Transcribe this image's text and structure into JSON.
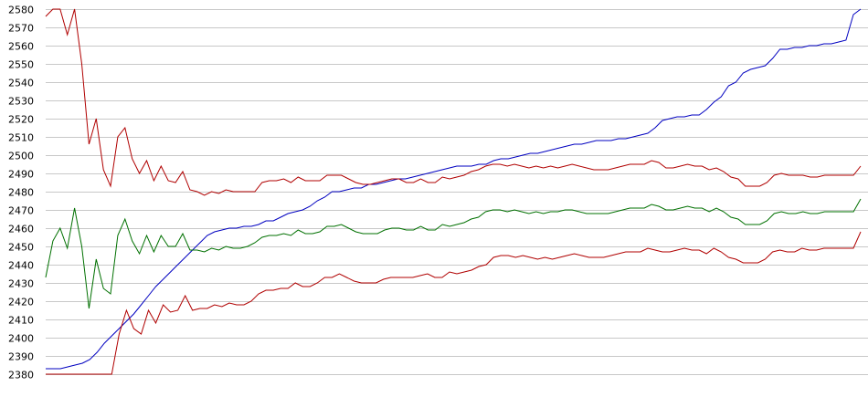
{
  "chart_data": {
    "type": "line",
    "title": "",
    "xlabel": "",
    "ylabel": "",
    "ylim": [
      2380,
      2580
    ],
    "y_ticks": [
      "2380",
      "2390",
      "2400",
      "2410",
      "2420",
      "2430",
      "2440",
      "2450",
      "2460",
      "2470",
      "2480",
      "2490",
      "2500",
      "2510",
      "2520",
      "2530",
      "2540",
      "2550",
      "2560",
      "2570",
      "2580"
    ],
    "grid": "horizontal",
    "legend": "none",
    "series": [
      {
        "color": "#0000c0",
        "values": [
          2383,
          2383,
          2383,
          2384,
          2385,
          2386,
          2388,
          2392,
          2397,
          2401,
          2405,
          2409,
          2413,
          2418,
          2423,
          2428,
          2432,
          2436,
          2440,
          2444,
          2448,
          2452,
          2456,
          2458,
          2459,
          2460,
          2460,
          2461,
          2461,
          2462,
          2464,
          2464,
          2466,
          2468,
          2469,
          2470,
          2472,
          2475,
          2477,
          2480,
          2480,
          2481,
          2482,
          2482,
          2484,
          2484,
          2485,
          2486,
          2487,
          2487,
          2488,
          2489,
          2490,
          2491,
          2492,
          2493,
          2494,
          2494,
          2494,
          2495,
          2495,
          2497,
          2498,
          2498,
          2499,
          2500,
          2501,
          2501,
          2502,
          2503,
          2504,
          2505,
          2506,
          2506,
          2507,
          2508,
          2508,
          2508,
          2509,
          2509,
          2510,
          2511,
          2512,
          2515,
          2519,
          2520,
          2521,
          2521,
          2522,
          2522,
          2525,
          2529,
          2532,
          2538,
          2540,
          2545,
          2547,
          2548,
          2549,
          2553,
          2558,
          2558,
          2559,
          2559,
          2560,
          2560,
          2561,
          2561,
          2562,
          2563,
          2577,
          2580
        ]
      },
      {
        "color": "#b00000",
        "values": [
          2576,
          2580,
          2580,
          2566,
          2580,
          2550,
          2506,
          2520,
          2492,
          2483,
          2510,
          2515,
          2498,
          2490,
          2497,
          2486,
          2494,
          2486,
          2485,
          2491,
          2481,
          2480,
          2478,
          2480,
          2479,
          2481,
          2480,
          2480,
          2480,
          2480,
          2485,
          2486,
          2486,
          2487,
          2485,
          2488,
          2486,
          2486,
          2486,
          2489,
          2489,
          2489,
          2487,
          2485,
          2484,
          2484,
          2485,
          2486,
          2487,
          2487,
          2485,
          2485,
          2487,
          2485,
          2485,
          2488,
          2487,
          2488,
          2489,
          2491,
          2492,
          2494,
          2495,
          2495,
          2494,
          2495,
          2494,
          2493,
          2494,
          2493,
          2494,
          2493,
          2494,
          2495,
          2494,
          2493,
          2492,
          2492,
          2492,
          2493,
          2494,
          2495,
          2495,
          2495,
          2497,
          2496,
          2493,
          2493,
          2494,
          2495,
          2494,
          2494,
          2492,
          2493,
          2491,
          2488,
          2487,
          2483,
          2483,
          2483,
          2485,
          2489,
          2490,
          2489,
          2489,
          2489,
          2488,
          2488,
          2489,
          2489,
          2489,
          2489,
          2489,
          2494
        ]
      },
      {
        "color": "#007000",
        "values": [
          2433,
          2453,
          2460,
          2449,
          2471,
          2450,
          2416,
          2443,
          2427,
          2424,
          2456,
          2465,
          2453,
          2446,
          2456,
          2447,
          2456,
          2450,
          2450,
          2457,
          2448,
          2448,
          2447,
          2449,
          2448,
          2450,
          2449,
          2449,
          2450,
          2452,
          2455,
          2456,
          2456,
          2457,
          2456,
          2459,
          2457,
          2457,
          2458,
          2461,
          2461,
          2462,
          2460,
          2458,
          2457,
          2457,
          2457,
          2459,
          2460,
          2460,
          2459,
          2459,
          2461,
          2459,
          2459,
          2462,
          2461,
          2462,
          2463,
          2465,
          2466,
          2469,
          2470,
          2470,
          2469,
          2470,
          2469,
          2468,
          2469,
          2468,
          2469,
          2469,
          2470,
          2470,
          2469,
          2468,
          2468,
          2468,
          2468,
          2469,
          2470,
          2471,
          2471,
          2471,
          2473,
          2472,
          2470,
          2470,
          2471,
          2472,
          2471,
          2471,
          2469,
          2471,
          2469,
          2466,
          2465,
          2462,
          2462,
          2462,
          2464,
          2468,
          2469,
          2468,
          2468,
          2469,
          2468,
          2468,
          2469,
          2469,
          2469,
          2469,
          2469,
          2476
        ]
      },
      {
        "color": "#b00000",
        "values": [
          2380,
          2380,
          2380,
          2380,
          2380,
          2380,
          2380,
          2380,
          2380,
          2380,
          2402,
          2415,
          2405,
          2402,
          2415,
          2408,
          2418,
          2414,
          2415,
          2423,
          2415,
          2416,
          2416,
          2418,
          2417,
          2419,
          2418,
          2418,
          2420,
          2424,
          2426,
          2426,
          2427,
          2427,
          2430,
          2428,
          2428,
          2430,
          2433,
          2433,
          2435,
          2433,
          2431,
          2430,
          2430,
          2430,
          2432,
          2433,
          2433,
          2433,
          2433,
          2434,
          2435,
          2433,
          2433,
          2436,
          2435,
          2436,
          2437,
          2439,
          2440,
          2444,
          2445,
          2445,
          2444,
          2445,
          2444,
          2443,
          2444,
          2443,
          2444,
          2445,
          2446,
          2445,
          2444,
          2444,
          2444,
          2445,
          2446,
          2447,
          2447,
          2447,
          2449,
          2448,
          2447,
          2447,
          2448,
          2449,
          2448,
          2448,
          2446,
          2449,
          2447,
          2444,
          2443,
          2441,
          2441,
          2441,
          2443,
          2447,
          2448,
          2447,
          2447,
          2449,
          2448,
          2448,
          2449,
          2449,
          2449,
          2449,
          2449,
          2458
        ]
      }
    ]
  }
}
